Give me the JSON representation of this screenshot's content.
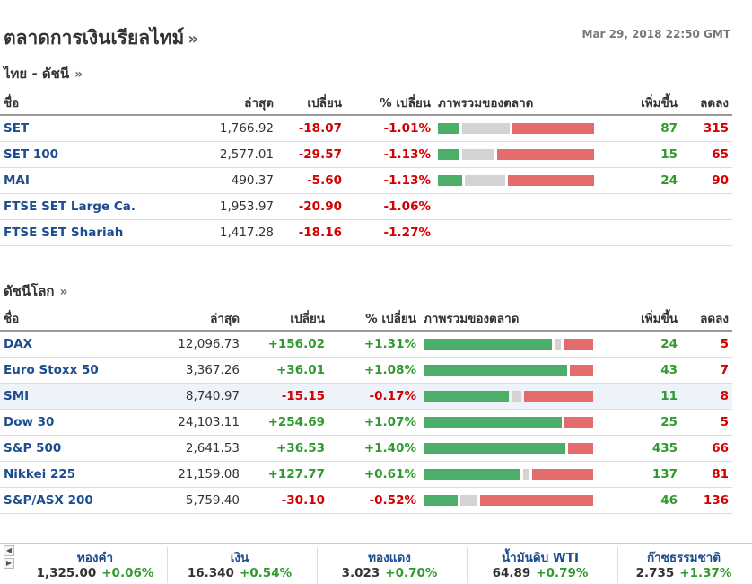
{
  "header": {
    "title": "ตลาดการเงินเรียลไทม์",
    "title_more": "»",
    "timestamp": "Mar 29, 2018 22:50 GMT"
  },
  "thai_section": {
    "title": "ไทย - ดัชนี",
    "more": "»",
    "columns": [
      "ชื่อ",
      "ล่าสุด",
      "เปลี่ยน",
      "% เปลี่ยน",
      "ภาพรวมของตลาด",
      "เพิ่มขึ้น",
      "ลดลง"
    ],
    "rows": [
      {
        "name": "SET",
        "last": "1,766.92",
        "change": "-18.07",
        "pct": "-1.01%",
        "up": "87",
        "down": "315",
        "breadth": {
          "up": 0.14,
          "neutral": 0.32,
          "down": 0.54
        }
      },
      {
        "name": "SET 100",
        "last": "2,577.01",
        "change": "-29.57",
        "pct": "-1.13%",
        "up": "15",
        "down": "65",
        "breadth": {
          "up": 0.14,
          "neutral": 0.22,
          "down": 0.64
        }
      },
      {
        "name": "MAI",
        "last": "490.37",
        "change": "-5.60",
        "pct": "-1.13%",
        "up": "24",
        "down": "90",
        "breadth": {
          "up": 0.16,
          "neutral": 0.27,
          "down": 0.57
        }
      },
      {
        "name": "FTSE SET Large Ca.",
        "last": "1,953.97",
        "change": "-20.90",
        "pct": "-1.06%",
        "up": "",
        "down": ""
      },
      {
        "name": "FTSE SET Shariah",
        "last": "1,417.28",
        "change": "-18.16",
        "pct": "-1.27%",
        "up": "",
        "down": ""
      }
    ]
  },
  "world_section": {
    "title": "ดัชนีโลก",
    "more": "»",
    "columns": [
      "ชื่อ",
      "ล่าสุด",
      "เปลี่ยน",
      "% เปลี่ยน",
      "ภาพรวมของตลาด",
      "เพิ่มขึ้น",
      "ลดลง"
    ],
    "rows": [
      {
        "name": "DAX",
        "last": "12,096.73",
        "change": "+156.02",
        "pct": "+1.31%",
        "up": "24",
        "down": "5",
        "breadth": {
          "up": 0.78,
          "neutral": 0.04,
          "down": 0.18
        }
      },
      {
        "name": "Euro Stoxx 50",
        "last": "3,367.26",
        "change": "+36.01",
        "pct": "+1.08%",
        "up": "43",
        "down": "7",
        "breadth": {
          "up": 0.86,
          "neutral": 0.0,
          "down": 0.14
        }
      },
      {
        "name": "SMI",
        "last": "8,740.97",
        "change": "-15.15",
        "pct": "-0.17%",
        "up": "11",
        "down": "8",
        "breadth": {
          "up": 0.52,
          "neutral": 0.06,
          "down": 0.42
        },
        "highlight": true
      },
      {
        "name": "Dow 30",
        "last": "24,103.11",
        "change": "+254.69",
        "pct": "+1.07%",
        "up": "25",
        "down": "5",
        "breadth": {
          "up": 0.83,
          "neutral": 0.0,
          "down": 0.17
        }
      },
      {
        "name": "S&P 500",
        "last": "2,641.53",
        "change": "+36.53",
        "pct": "+1.40%",
        "up": "435",
        "down": "66",
        "breadth": {
          "up": 0.85,
          "neutral": 0.0,
          "down": 0.15
        }
      },
      {
        "name": "Nikkei 225",
        "last": "21,159.08",
        "change": "+127.77",
        "pct": "+0.61%",
        "up": "137",
        "down": "81",
        "breadth": {
          "up": 0.59,
          "neutral": 0.04,
          "down": 0.37
        }
      },
      {
        "name": "S&P/ASX 200",
        "last": "5,759.40",
        "change": "-30.10",
        "pct": "-0.52%",
        "up": "46",
        "down": "136",
        "breadth": {
          "up": 0.21,
          "neutral": 0.1,
          "down": 0.69
        }
      }
    ]
  },
  "ticker": {
    "prev_icon": "arrow-left-icon",
    "next_icon": "arrow-right-icon",
    "items": [
      {
        "name": "ทองคำ",
        "value": "1,325.00",
        "change": "+0.06%"
      },
      {
        "name": "เงิน",
        "value": "16.340",
        "change": "+0.54%"
      },
      {
        "name": "ทองแดง",
        "value": "3.023",
        "change": "+0.70%"
      },
      {
        "name": "น้ำมันดิบ WTI",
        "value": "64.89",
        "change": "+0.79%"
      },
      {
        "name": "ก๊าซธรรมชาติ",
        "value": "2.735",
        "change": "+1.37%"
      }
    ]
  },
  "colors": {
    "name_link": "#1d4d8f",
    "negative": "#d40000",
    "positive": "#2f9a2f",
    "breadth_up": "#4caf69",
    "breadth_neutral": "#d3d3d3",
    "breadth_down": "#e46b6b"
  }
}
